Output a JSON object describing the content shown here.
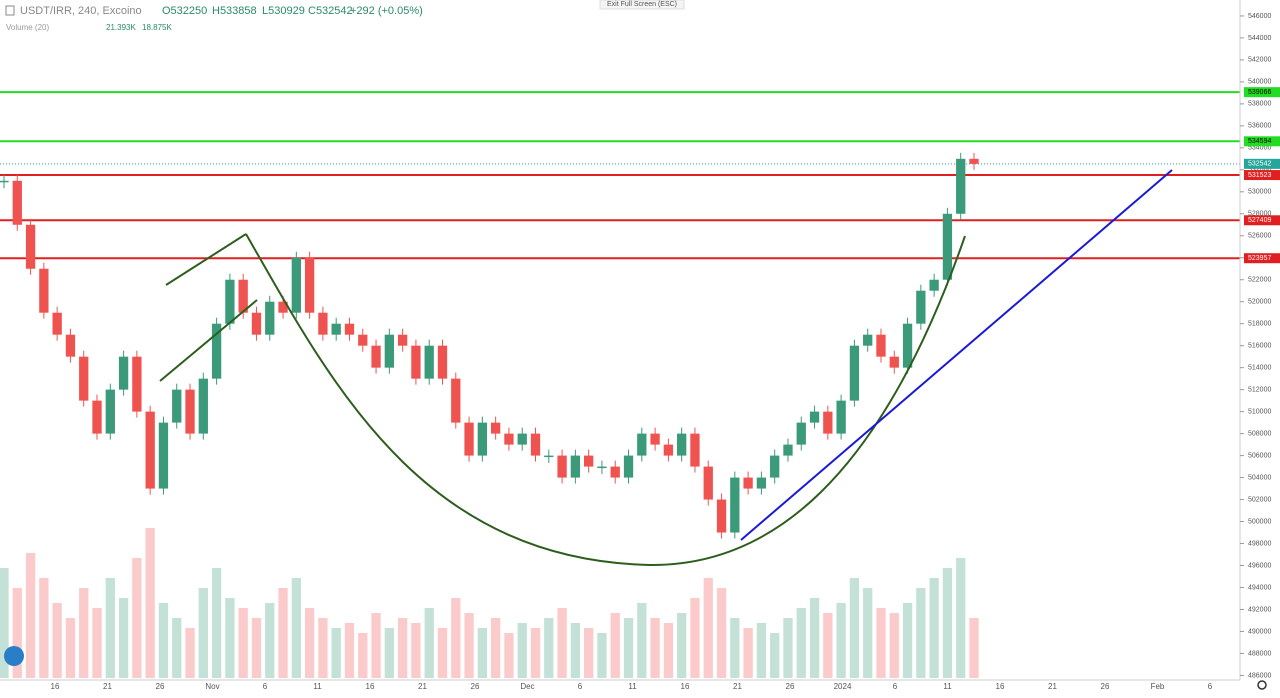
{
  "chart_data": {
    "type": "candlestick",
    "title": "USDT/IRR, 240, Excoino",
    "ohlc_texts": [
      "O532250",
      "H533858",
      "L530929",
      "C532542"
    ],
    "change_text": "+292 (+0.05%)",
    "volume_title": "Volume (20)",
    "volume_texts": [
      "21.393K",
      "18.875K"
    ],
    "exit_text": "Exit Full Screen (ESC)",
    "ylim": [
      484400,
      547450
    ],
    "yticks": [
      486000,
      488000,
      490000,
      492000,
      494000,
      496000,
      498000,
      500000,
      502000,
      504000,
      506000,
      508000,
      510000,
      512000,
      514000,
      516000,
      518000,
      520000,
      522000,
      524000,
      526000,
      528000,
      530000,
      532000,
      534000,
      536000,
      538000,
      540000,
      542000,
      544000,
      546000
    ],
    "x_tick_labels": [
      "16",
      "21",
      "26",
      "Nov",
      "6",
      "11",
      "16",
      "21",
      "26",
      "Dec",
      "6",
      "11",
      "16",
      "21",
      "26",
      "2024",
      "6",
      "11",
      "16",
      "21",
      "26",
      "Feb",
      "6"
    ],
    "levels": [
      {
        "value": 539066,
        "color": "#22dd22"
      },
      {
        "value": 534594,
        "color": "#22dd22"
      },
      {
        "value": 531523,
        "color": "#e02020"
      },
      {
        "value": 527409,
        "color": "#e02020"
      },
      {
        "value": 523957,
        "color": "#e02020"
      }
    ],
    "last_price": 532542,
    "last_price_color": "#26a69a",
    "up_color": "#3a9a7a",
    "down_color": "#ef5350",
    "closes": [
      531000,
      527000,
      523000,
      519000,
      517000,
      515000,
      511000,
      508000,
      512000,
      515000,
      510000,
      503000,
      509000,
      512000,
      508000,
      513000,
      518000,
      522000,
      519000,
      517000,
      520000,
      519000,
      524000,
      519000,
      517000,
      518000,
      517000,
      516000,
      514000,
      517000,
      516000,
      513000,
      516000,
      513000,
      509000,
      506000,
      509000,
      508000,
      507000,
      508000,
      506000,
      506000,
      504000,
      506000,
      505000,
      505000,
      504000,
      506000,
      508000,
      507000,
      506000,
      508000,
      505000,
      502000,
      499000,
      504000,
      503000,
      504000,
      506000,
      507000,
      509000,
      510000,
      508000,
      511000,
      516000,
      517000,
      515000,
      514000,
      518000,
      521000,
      522000,
      528000,
      533000,
      532542
    ],
    "volume_lim": [
      0,
      40
    ],
    "volumes": [
      22,
      18,
      25,
      20,
      15,
      12,
      18,
      14,
      20,
      16,
      24,
      30,
      15,
      12,
      10,
      18,
      22,
      16,
      14,
      12,
      15,
      18,
      20,
      14,
      12,
      10,
      11,
      9,
      13,
      10,
      12,
      11,
      14,
      10,
      16,
      13,
      10,
      12,
      9,
      11,
      10,
      12,
      14,
      11,
      10,
      9,
      13,
      12,
      15,
      12,
      11,
      13,
      16,
      20,
      18,
      12,
      10,
      11,
      9,
      12,
      14,
      16,
      13,
      15,
      20,
      18,
      14,
      13,
      15,
      18,
      20,
      22,
      24,
      12
    ]
  }
}
